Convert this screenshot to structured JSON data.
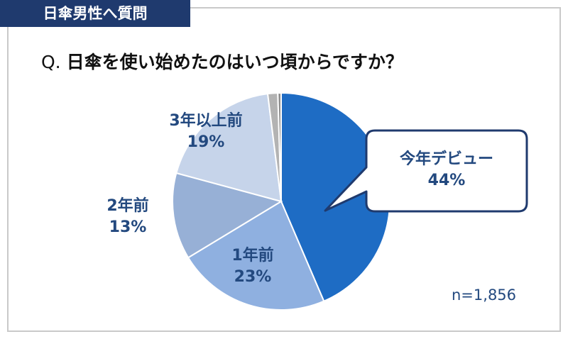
{
  "header": {
    "tag": "日傘男性へ質問"
  },
  "question": {
    "prefix": "Q.",
    "text": "日傘を使い始めたのはいつ頃からですか？"
  },
  "sample_size": "n=1,856",
  "chart_data": {
    "type": "pie",
    "title": "日傘を使い始めたのはいつ頃からですか？",
    "slices": [
      {
        "label": "今年デビュー",
        "value": 44,
        "value_label": "44%",
        "color": "#1e6cc4"
      },
      {
        "label": "1年前",
        "value": 23,
        "value_label": "23%",
        "color": "#8fb0e0"
      },
      {
        "label": "2年前",
        "value": 13,
        "value_label": "13%",
        "color": "#97b0d6"
      },
      {
        "label": "3年以上前",
        "value": 19,
        "value_label": "19%",
        "color": "#c6d4ea"
      },
      {
        "label": "",
        "value": 1.5,
        "value_label": "",
        "color": "#b3b3b3"
      },
      {
        "label": "",
        "value": 0.5,
        "value_label": "",
        "color": "#8c8c8c"
      }
    ]
  }
}
